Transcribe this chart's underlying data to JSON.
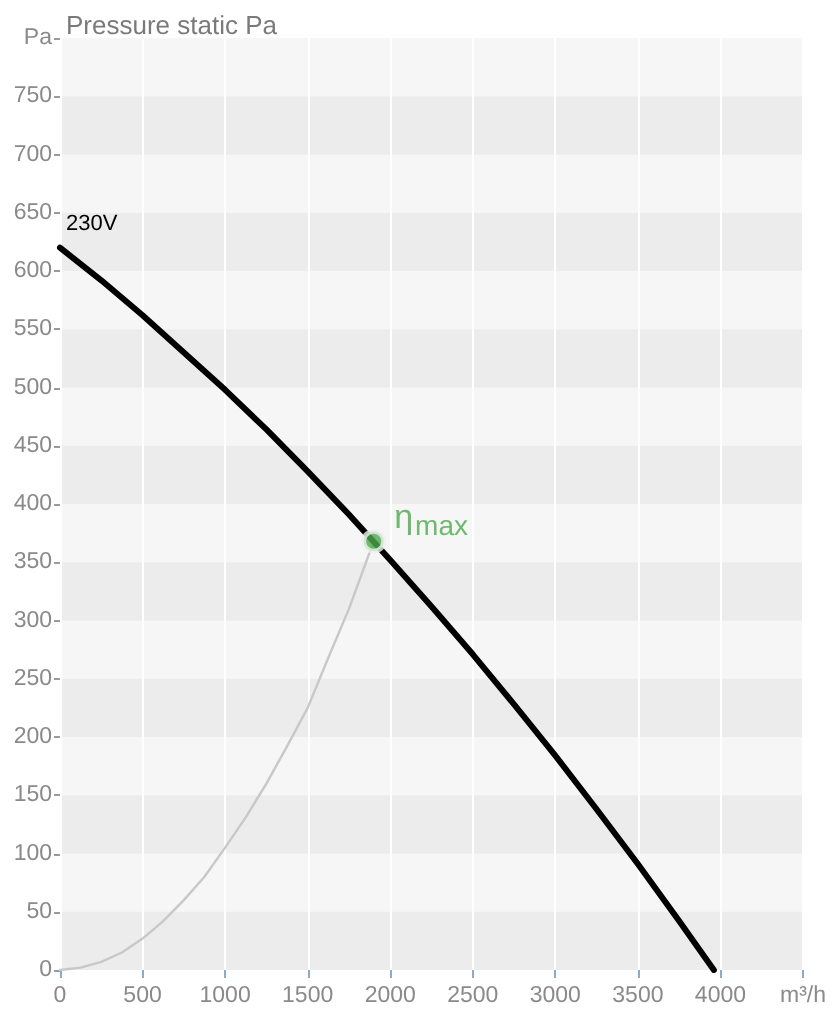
{
  "chart_data": {
    "type": "line",
    "title": "Pressure static Pa",
    "xlim": [
      0,
      4500
    ],
    "xticks": [
      0,
      500,
      1000,
      1500,
      2000,
      2500,
      3000,
      3500,
      4000,
      {
        "value": 4500,
        "label": "m³/h"
      }
    ],
    "ylim": [
      0,
      800
    ],
    "yticks": [
      0,
      50,
      100,
      150,
      200,
      250,
      300,
      350,
      400,
      450,
      500,
      550,
      600,
      650,
      700,
      750,
      {
        "value": 800,
        "label": "Pa"
      }
    ],
    "grid": true,
    "series": [
      {
        "name": "230V",
        "color": "#000000",
        "x": [
          0,
          250,
          500,
          750,
          1000,
          1250,
          1500,
          1750,
          2000,
          2250,
          2500,
          2750,
          3000,
          3250,
          3500,
          3750,
          3960
        ],
        "values": [
          620,
          592,
          562,
          530,
          498,
          464,
          428,
          391,
          352,
          312,
          271,
          228,
          184,
          138,
          91,
          42,
          0
        ]
      },
      {
        "color": "#c8c8c8",
        "x": [
          0,
          125,
          250,
          375,
          500,
          625,
          750,
          875,
          1000,
          1125,
          1250,
          1375,
          1500,
          1625,
          1750,
          1900
        ],
        "values": [
          0,
          2,
          7,
          15,
          27,
          42,
          60,
          80,
          105,
          131,
          160,
          192,
          225,
          268,
          310,
          368
        ]
      },
      {
        "type": "scatter",
        "name": "η$_{max}$",
        "color": "#4caa4c",
        "marker": "circle",
        "x": [
          1900
        ],
        "values": [
          368
        ]
      }
    ]
  }
}
